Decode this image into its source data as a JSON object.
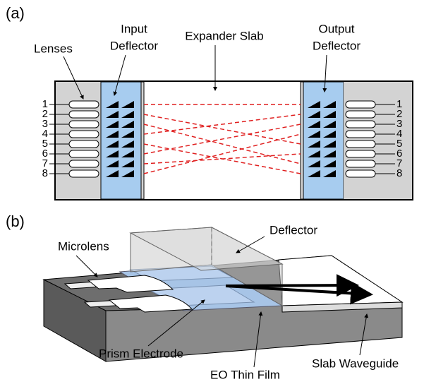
{
  "panel_a": {
    "tag": "(a)",
    "lenses": "Lenses",
    "input_deflector": [
      "Input",
      "Deflector"
    ],
    "expander_slab": "Expander Slab",
    "output_deflector": [
      "Output",
      "Deflector"
    ],
    "left_ports": [
      "1",
      "2",
      "3",
      "4",
      "5",
      "6",
      "7",
      "8"
    ],
    "right_ports": [
      "1",
      "2",
      "3",
      "4",
      "5",
      "6",
      "7",
      "8"
    ]
  },
  "panel_b": {
    "tag": "(b)",
    "deflector": "Deflector",
    "microlens": "Microlens",
    "prism_electrode": "Prism Electrode",
    "eo_thin_film": "EO Thin Film",
    "slab_waveguide": "Slab Waveguide"
  }
}
